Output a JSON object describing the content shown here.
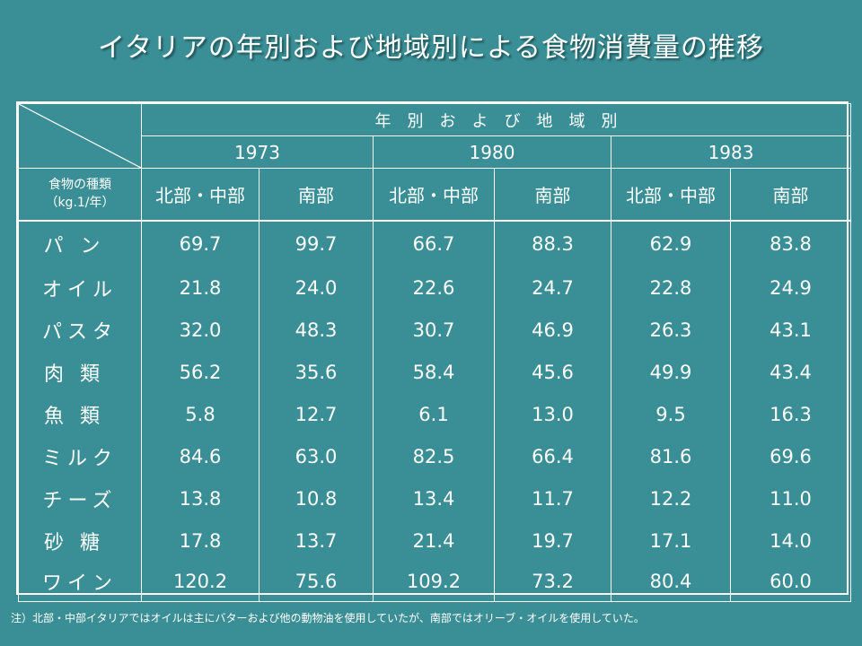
{
  "title": "イタリアの年別および地域別による食物消費量の推移",
  "header": {
    "group_label": "年別および地域別",
    "years": [
      "1973",
      "1980",
      "1983"
    ],
    "row_header_line1": "食物の種類",
    "row_header_line2": "（kg.1/年）",
    "region_north": "北部・中部",
    "region_south": "南部"
  },
  "rows": [
    {
      "food": "パン",
      "values": [
        "69.7",
        "99.7",
        "66.7",
        "88.3",
        "62.9",
        "83.8"
      ]
    },
    {
      "food": "オイル",
      "values": [
        "21.8",
        "24.0",
        "22.6",
        "24.7",
        "22.8",
        "24.9"
      ]
    },
    {
      "food": "パスタ",
      "values": [
        "32.0",
        "48.3",
        "30.7",
        "46.9",
        "26.3",
        "43.1"
      ]
    },
    {
      "food": "肉類",
      "values": [
        "56.2",
        "35.6",
        "58.4",
        "45.6",
        "49.9",
        "43.4"
      ]
    },
    {
      "food": "魚類",
      "values": [
        "5.8",
        "12.7",
        "6.1",
        "13.0",
        "9.5",
        "16.3"
      ]
    },
    {
      "food": "ミルク",
      "values": [
        "84.6",
        "63.0",
        "82.5",
        "66.4",
        "81.6",
        "69.6"
      ]
    },
    {
      "food": "チーズ",
      "values": [
        "13.8",
        "10.8",
        "13.4",
        "11.7",
        "12.2",
        "11.0"
      ]
    },
    {
      "food": "砂糖",
      "values": [
        "17.8",
        "13.7",
        "21.4",
        "19.7",
        "17.1",
        "14.0"
      ]
    },
    {
      "food": "ワイン",
      "values": [
        "120.2",
        "75.6",
        "109.2",
        "73.2",
        "80.4",
        "60.0"
      ]
    }
  ],
  "note": "注）北部・中部イタリアではオイルは主にバターおよび他の動物油を使用していたが、南部ではオリーブ・オイルを使用していた。",
  "colors": {
    "background": "#3a8e95",
    "text": "#ffffff",
    "lines": "#ffffff"
  }
}
